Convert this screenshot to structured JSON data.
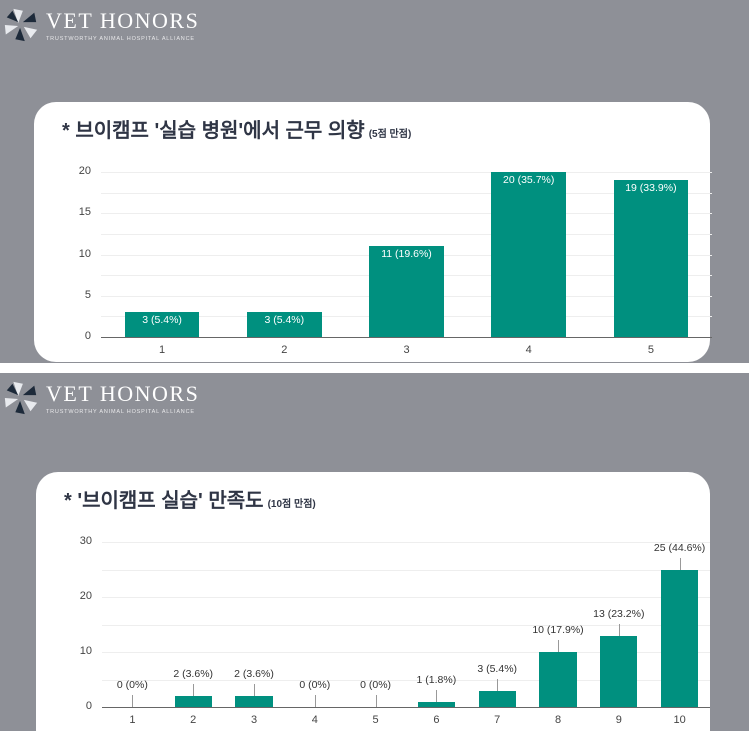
{
  "brand": {
    "name": "VET HONORS",
    "tagline": "TRUSTWORTHY ANIMAL HOSPITAL ALLIANCE"
  },
  "colors": {
    "bar": "#00907f",
    "background": "#8e9097",
    "card": "#ffffff",
    "title": "#2f3545"
  },
  "chart_data": [
    {
      "type": "bar",
      "title": "* 브이캠프 '실습 병원'에서 근무 의향",
      "subtitle": "(5점 만점)",
      "categories": [
        "1",
        "2",
        "3",
        "4",
        "5"
      ],
      "values": [
        3,
        3,
        11,
        20,
        19
      ],
      "labels": [
        "3 (5.4%)",
        "3 (5.4%)",
        "11 (19.6%)",
        "20 (35.7%)",
        "19 (33.9%)"
      ],
      "yticks": [
        "0",
        "5",
        "10",
        "15",
        "20"
      ],
      "ylim": [
        0,
        20
      ],
      "xlabel": "",
      "ylabel": "",
      "grid": true,
      "label_position": "inside"
    },
    {
      "type": "bar",
      "title": "* '브이캠프 실습' 만족도",
      "subtitle": "(10점 만점)",
      "categories": [
        "1",
        "2",
        "3",
        "4",
        "5",
        "6",
        "7",
        "8",
        "9",
        "10"
      ],
      "values": [
        0,
        2,
        2,
        0,
        0,
        1,
        3,
        10,
        13,
        25
      ],
      "labels": [
        "0 (0%)",
        "2 (3.6%)",
        "2 (3.6%)",
        "0 (0%)",
        "0 (0%)",
        "1 (1.8%)",
        "3 (5.4%)",
        "10 (17.9%)",
        "13 (23.2%)",
        "25 (44.6%)"
      ],
      "yticks": [
        "0",
        "10",
        "20",
        "30"
      ],
      "ylim": [
        0,
        30
      ],
      "xlabel": "",
      "ylabel": "",
      "grid": true,
      "label_position": "above"
    }
  ]
}
